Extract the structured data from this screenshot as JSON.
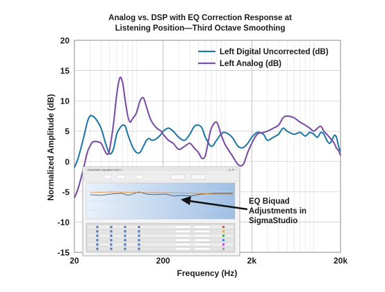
{
  "chart_data": {
    "type": "line",
    "title_line1": "Analog vs. DSP with EQ Correction Response at",
    "title_line2": "Listening Position—Third Octave Smoothing",
    "xlabel": "Frequency (Hz)",
    "ylabel": "Normalized Amplitude (dB)",
    "x_scale": "log",
    "xlim": [
      20,
      20000
    ],
    "ylim": [
      -15,
      20
    ],
    "x_ticks": [
      {
        "value": 20,
        "label": "20"
      },
      {
        "value": 200,
        "label": "200"
      },
      {
        "value": 2000,
        "label": "2k"
      },
      {
        "value": 20000,
        "label": "20k"
      }
    ],
    "y_ticks": [
      {
        "value": 20,
        "label": "20"
      },
      {
        "value": 15,
        "label": "15"
      },
      {
        "value": 10,
        "label": "10"
      },
      {
        "value": 5,
        "label": "5"
      },
      {
        "value": 0,
        "label": "0"
      },
      {
        "value": -5,
        "label": "-5"
      },
      {
        "value": -10,
        "label": "-10"
      },
      {
        "value": -15,
        "label": "-15"
      }
    ],
    "grid": true,
    "legend_position": "top-right",
    "series": [
      {
        "name": "Left Digital Uncorrected (dB)",
        "color": "#2179a6",
        "x": [
          20,
          22,
          25,
          28,
          30,
          32,
          35,
          40,
          45,
          50,
          55,
          60,
          65,
          70,
          75,
          80,
          90,
          100,
          110,
          120,
          130,
          140,
          150,
          170,
          190,
          200,
          230,
          260,
          300,
          350,
          400,
          450,
          500,
          550,
          600,
          700,
          800,
          900,
          1000,
          1200,
          1400,
          1600,
          1800,
          2000,
          2300,
          2700,
          3000,
          3500,
          4000,
          4500,
          5000,
          6000,
          7000,
          8000,
          9000,
          10000,
          11000,
          12000,
          13000,
          14000,
          15000,
          16000,
          17000,
          18000,
          19000,
          20000
        ],
        "y": [
          -1.0,
          0.5,
          3.5,
          6.5,
          7.5,
          7.5,
          7.0,
          5.5,
          3.0,
          1.3,
          2.0,
          4.5,
          5.5,
          6.0,
          5.8,
          4.5,
          2.5,
          1.5,
          1.5,
          2.5,
          3.5,
          3.8,
          3.5,
          3.8,
          4.5,
          5.0,
          5.5,
          5.0,
          4.0,
          3.5,
          4.5,
          5.8,
          6.0,
          5.5,
          4.0,
          2.5,
          3.5,
          4.5,
          4.8,
          4.0,
          2.5,
          2.3,
          3.0,
          4.0,
          4.8,
          4.5,
          3.5,
          4.0,
          4.5,
          5.5,
          5.0,
          4.5,
          4.8,
          4.2,
          4.8,
          4.5,
          4.0,
          4.8,
          4.5,
          3.5,
          3.0,
          3.5,
          4.3,
          4.0,
          2.5,
          1.7
        ]
      },
      {
        "name": "Left Analog (dB)",
        "color": "#7b4ea3",
        "x": [
          20,
          22,
          25,
          28,
          30,
          32,
          35,
          40,
          45,
          48,
          50,
          55,
          60,
          65,
          70,
          75,
          80,
          85,
          90,
          100,
          110,
          120,
          130,
          140,
          150,
          170,
          190,
          200,
          230,
          260,
          300,
          350,
          400,
          450,
          500,
          550,
          600,
          650,
          700,
          800,
          900,
          1000,
          1200,
          1400,
          1600,
          1800,
          2000,
          2300,
          2700,
          3000,
          3500,
          4000,
          4500,
          5000,
          6000,
          7000,
          8000,
          9000,
          10000,
          11000,
          12000,
          13000,
          14000,
          15000,
          16000,
          17000,
          18000,
          19000,
          20000
        ],
        "y": [
          -6.0,
          -4.5,
          -1.5,
          1.5,
          2.5,
          3.2,
          3.3,
          3.0,
          1.5,
          1.2,
          2.0,
          6.0,
          11.0,
          13.8,
          13.0,
          10.0,
          7.5,
          6.5,
          7.0,
          8.0,
          10.0,
          10.5,
          9.0,
          7.5,
          6.5,
          5.5,
          5.0,
          4.5,
          3.5,
          3.0,
          2.0,
          2.5,
          3.0,
          2.2,
          1.5,
          0.5,
          1.0,
          3.5,
          5.5,
          6.5,
          4.5,
          2.8,
          1.0,
          -0.5,
          -0.5,
          1.5,
          3.0,
          4.5,
          4.8,
          5.0,
          5.5,
          6.0,
          7.2,
          7.5,
          7.2,
          6.5,
          6.0,
          5.5,
          5.0,
          5.5,
          5.8,
          5.0,
          4.5,
          4.0,
          3.5,
          3.0,
          2.2,
          1.8,
          1.0
        ]
      }
    ],
    "annotation": {
      "line1": "EQ Biquad",
      "line2": "Adjustments in",
      "line3": "SigmaStudio"
    },
    "inset_window_title": "Parametric Equalizer EQ1 1"
  }
}
